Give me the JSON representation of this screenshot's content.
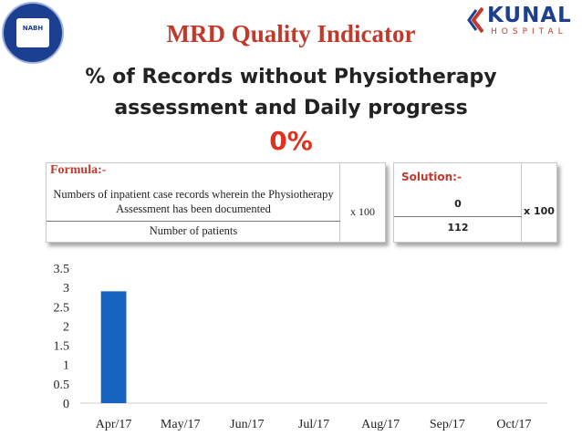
{
  "header": {
    "title": "MRD Quality Indicator",
    "subtitle_line1": "% of Records without Physiotherapy",
    "subtitle_line2": "assessment and Daily progress",
    "result": "0%"
  },
  "logos": {
    "left_seal": "NABH",
    "right_logo": {
      "word": "KUNAL",
      "sub": "HOSPITAL"
    }
  },
  "formula": {
    "label": "Formula:-",
    "numerator": "Numbers of inpatient case records wherein the Physiotherapy Assessment has been documented",
    "denominator": "Number of patients",
    "multiplier": "x 100"
  },
  "solution": {
    "label": "Solution:-",
    "numerator": "0",
    "denominator": "112",
    "multiplier": "x 100"
  },
  "colors": {
    "title": "#c0392b",
    "result": "#e0301e",
    "bar": "#1565c0",
    "logo_blue": "#1e3f8c"
  },
  "chart_data": {
    "type": "bar",
    "categories": [
      "Apr/17",
      "May/17",
      "Jun/17",
      "Jul/17",
      "Aug/17",
      "Sep/17",
      "Oct/17"
    ],
    "values": [
      2.9,
      null,
      null,
      null,
      null,
      null,
      null
    ],
    "yticks": [
      "0",
      "0.5",
      "1",
      "1.5",
      "2",
      "2.5",
      "3",
      "3.5"
    ],
    "ylim": [
      0,
      3.5
    ],
    "grid": false,
    "legend": "none"
  }
}
